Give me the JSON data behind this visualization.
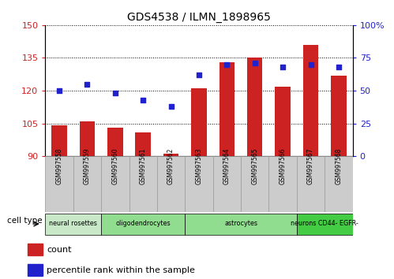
{
  "title": "GDS4538 / ILMN_1898965",
  "samples": [
    "GSM997558",
    "GSM997559",
    "GSM997560",
    "GSM997561",
    "GSM997562",
    "GSM997563",
    "GSM997564",
    "GSM997565",
    "GSM997566",
    "GSM997567",
    "GSM997568"
  ],
  "bar_values": [
    104,
    106,
    103,
    101,
    91,
    121,
    133,
    135,
    122,
    141,
    127
  ],
  "dot_values": [
    50,
    55,
    48,
    43,
    38,
    62,
    70,
    71,
    68,
    70,
    68
  ],
  "bar_bottom": 90,
  "left_ylim": [
    90,
    150
  ],
  "right_ylim": [
    0,
    100
  ],
  "left_yticks": [
    90,
    105,
    120,
    135,
    150
  ],
  "right_yticks": [
    0,
    25,
    50,
    75,
    100
  ],
  "right_yticklabels": [
    "0",
    "25",
    "50",
    "75",
    "100%"
  ],
  "bar_color": "#cc2222",
  "dot_color": "#2222cc",
  "cell_type_groups": [
    {
      "label": "neural rosettes",
      "start": 0,
      "end": 2,
      "color": "#c8e8c8"
    },
    {
      "label": "oligodendrocytes",
      "start": 2,
      "end": 5,
      "color": "#90dd90"
    },
    {
      "label": "astrocytes",
      "start": 5,
      "end": 9,
      "color": "#90dd90"
    },
    {
      "label": "neurons CD44- EGFR-",
      "start": 9,
      "end": 11,
      "color": "#44cc44"
    }
  ],
  "cell_type_label": "cell type",
  "legend_count_label": "count",
  "legend_pct_label": "percentile rank within the sample",
  "bg_color": "white",
  "label_color_left": "#cc2222",
  "label_color_right": "#2222cc",
  "sample_box_color": "#cccccc",
  "sample_box_edge": "#999999"
}
